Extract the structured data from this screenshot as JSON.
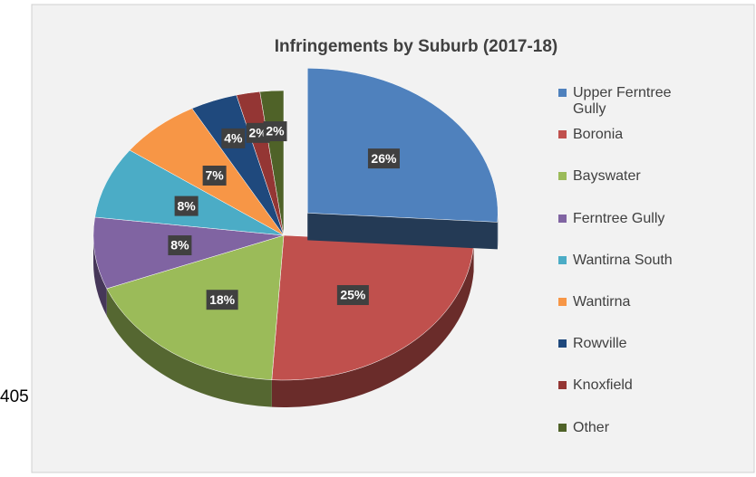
{
  "page_text": "405",
  "chart_data": {
    "type": "pie",
    "title": "Infringements by Suburb (2017-18)",
    "categories": [
      "Upper Ferntree Gully",
      "Boronia",
      "Bayswater",
      "Ferntree Gully",
      "Wantirna South",
      "Wantirna",
      "Rowville",
      "Knoxfield",
      "Other"
    ],
    "values": [
      26,
      25,
      18,
      8,
      8,
      7,
      4,
      2,
      2
    ],
    "value_labels": [
      "26%",
      "25%",
      "18%",
      "8%",
      "8%",
      "7%",
      "4%",
      "2%",
      "2%"
    ],
    "colors": [
      "#4f81bd",
      "#c0504d",
      "#9bbb59",
      "#8064a2",
      "#4bacc6",
      "#f79646",
      "#1f497d",
      "#943634",
      "#4f6228"
    ],
    "exploded": [
      0
    ],
    "legend": "right"
  }
}
